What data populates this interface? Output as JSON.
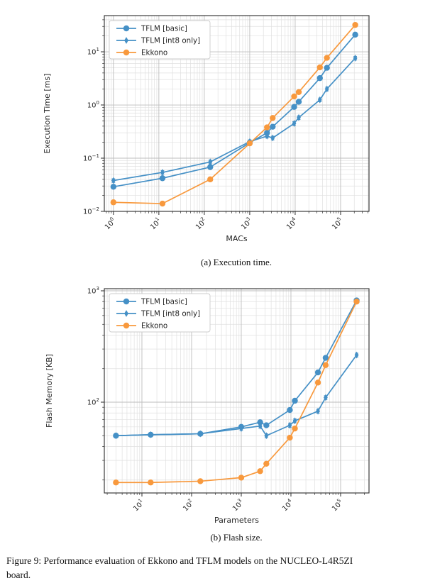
{
  "figure": {
    "caption_line1": "Figure 9: Performance evaluation of Ekkono and TFLM models on the NUCLEO-L4R5ZI",
    "caption_line2": "board."
  },
  "colors": {
    "tflm_blue": "#4590c6",
    "ekkono_orange": "#f8993d",
    "grid_major": "#bcbcbc",
    "grid_minor": "#e0e0e0",
    "spine": "#2b2b2b",
    "text": "#262626"
  },
  "chart_data": [
    {
      "id": "execution-time",
      "type": "line",
      "caption": "(a) Execution time.",
      "xlabel": "MACs",
      "ylabel": "Execution Time [ms]",
      "x_scale": "log",
      "y_scale": "log",
      "grid": "both",
      "legend_position": "upper left",
      "x_range": [
        0.63,
        422000
      ],
      "y_range": [
        0.01,
        47.9
      ],
      "x_tick_exponents": [
        0,
        1,
        2,
        3,
        4,
        5
      ],
      "y_tick_exponents": [
        -2,
        -1,
        0,
        1
      ],
      "error_fraction": 0.08,
      "x": [
        1,
        12,
        135,
        1000,
        2400,
        3200,
        9500,
        12000,
        35000,
        50000,
        210000
      ],
      "series": [
        {
          "name": "TFLM [basic]",
          "marker": "circle",
          "color": "#4590c6",
          "values": [
            0.029,
            0.042,
            0.068,
            0.195,
            0.3,
            0.39,
            0.92,
            1.15,
            3.2,
            5.0,
            21
          ]
        },
        {
          "name": "TFLM [int8 only]",
          "marker": "diamond",
          "color": "#4590c6",
          "values": [
            0.038,
            0.054,
            0.085,
            0.205,
            0.26,
            0.24,
            0.45,
            0.58,
            1.25,
            2.0,
            7.6
          ]
        },
        {
          "name": "Ekkono",
          "marker": "circle",
          "color": "#f8993d",
          "values": [
            0.0148,
            0.014,
            0.04,
            0.19,
            0.38,
            0.57,
            1.45,
            1.75,
            5.1,
            7.7,
            32
          ]
        }
      ]
    },
    {
      "id": "flash-size",
      "type": "line",
      "caption": "(b) Flash size.",
      "xlabel": "Parameters",
      "ylabel": "Flash Memory [KB]",
      "x_scale": "log",
      "y_scale": "log",
      "grid": "both",
      "legend_position": "upper left",
      "x_range": [
        1.75,
        373000
      ],
      "y_range": [
        15.3,
        1045
      ],
      "x_tick_exponents": [
        1,
        2,
        3,
        4,
        5
      ],
      "y_tick_exponents": [
        2,
        3
      ],
      "error_fraction": 0.04,
      "x": [
        3,
        15,
        150,
        1000,
        2400,
        3200,
        9500,
        12000,
        35000,
        50000,
        210000
      ],
      "series": [
        {
          "name": "TFLM [basic]",
          "marker": "circle",
          "color": "#4590c6",
          "values": [
            50,
            51,
            52,
            60,
            66,
            62,
            85,
            103,
            185,
            250,
            820
          ]
        },
        {
          "name": "TFLM [int8 only]",
          "marker": "diamond",
          "color": "#4590c6",
          "values": [
            50,
            51,
            52,
            58,
            61,
            50,
            62,
            68,
            83,
            110,
            265
          ]
        },
        {
          "name": "Ekkono",
          "marker": "circle",
          "color": "#f8993d",
          "values": [
            19,
            19,
            19.5,
            21,
            24,
            28,
            48,
            58,
            150,
            215,
            800
          ]
        }
      ]
    }
  ]
}
